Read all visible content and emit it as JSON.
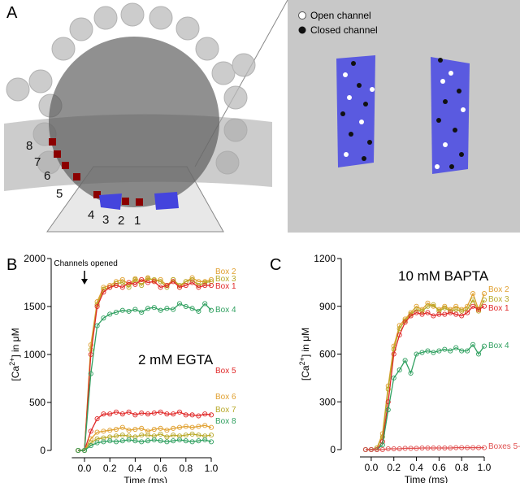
{
  "panel_a": {
    "label": "A",
    "legend": [
      "Open channel",
      "Closed channel"
    ],
    "box_labels": [
      "1",
      "2",
      "3",
      "4",
      "5",
      "6",
      "7",
      "8"
    ]
  },
  "chart_data": [
    {
      "type": "line",
      "panel_label": "B",
      "title": "2 mM EGTA",
      "annotation": "Channels opened",
      "x_label": "Time (ms)",
      "y_label": [
        "[Ca",
        "2+",
        "] in μM"
      ],
      "x": [
        -0.05,
        0,
        0.05,
        0.1,
        0.15,
        0.2,
        0.25,
        0.3,
        0.35,
        0.4,
        0.45,
        0.5,
        0.55,
        0.6,
        0.65,
        0.7,
        0.75,
        0.8,
        0.85,
        0.9,
        0.95,
        1.0
      ],
      "xlim": [
        -0.1,
        1.0
      ],
      "xticks": [
        {
          "value": 0,
          "label": "0.0"
        },
        0.2,
        0.4,
        0.6,
        0.8,
        {
          "value": 1,
          "label": "1.0"
        }
      ],
      "ylim": [
        0,
        2000
      ],
      "yticks": [
        0,
        500,
        1000,
        1500,
        2000
      ],
      "series": [
        {
          "name": "Box 2",
          "color": "#e0a030",
          "values": [
            0,
            0,
            1100,
            1550,
            1700,
            1720,
            1760,
            1780,
            1730,
            1790,
            1760,
            1800,
            1770,
            1780,
            1720,
            1780,
            1700,
            1760,
            1800,
            1760,
            1760,
            1780
          ]
        },
        {
          "name": "Box 3",
          "color": "#b8a828",
          "values": [
            0,
            0,
            1050,
            1520,
            1680,
            1700,
            1740,
            1750,
            1700,
            1780,
            1720,
            1790,
            1780,
            1760,
            1700,
            1780,
            1720,
            1760,
            1780,
            1720,
            1750,
            1760
          ]
        },
        {
          "name": "Box 1",
          "color": "#e02828",
          "values": [
            0,
            0,
            1000,
            1500,
            1650,
            1700,
            1720,
            1700,
            1750,
            1730,
            1780,
            1750,
            1760,
            1700,
            1720,
            1760,
            1700,
            1720,
            1750,
            1700,
            1720,
            1720
          ]
        },
        {
          "name": "Box 4",
          "color": "#30a060",
          "values": [
            0,
            0,
            800,
            1300,
            1380,
            1420,
            1440,
            1460,
            1450,
            1470,
            1440,
            1480,
            1490,
            1460,
            1480,
            1470,
            1530,
            1500,
            1480,
            1450,
            1530,
            1460
          ]
        },
        {
          "name": "Box 5",
          "color": "#e02828",
          "values": [
            0,
            0,
            200,
            330,
            380,
            380,
            400,
            380,
            400,
            370,
            390,
            380,
            390,
            400,
            380,
            380,
            400,
            370,
            370,
            360,
            380,
            370
          ]
        },
        {
          "name": "Box 6",
          "color": "#e0a030",
          "values": [
            0,
            0,
            120,
            190,
            200,
            210,
            220,
            240,
            210,
            220,
            230,
            200,
            220,
            230,
            210,
            230,
            240,
            250,
            240,
            250,
            260,
            240
          ]
        },
        {
          "name": "Box 7",
          "color": "#b8a828",
          "values": [
            0,
            0,
            80,
            120,
            130,
            140,
            150,
            160,
            150,
            140,
            160,
            160,
            150,
            170,
            140,
            160,
            150,
            160,
            170,
            160,
            150,
            160
          ]
        },
        {
          "name": "Box 8",
          "color": "#30a060",
          "values": [
            0,
            0,
            50,
            80,
            90,
            100,
            90,
            100,
            110,
            100,
            90,
            100,
            110,
            100,
            90,
            100,
            110,
            100,
            90,
            100,
            110,
            90
          ]
        }
      ]
    },
    {
      "type": "line",
      "panel_label": "C",
      "title": "10 mM BAPTA",
      "x_label": "Time (ms)",
      "y_label": [
        "[Ca",
        "2+",
        "] in μM"
      ],
      "x": [
        -0.05,
        0,
        0.05,
        0.1,
        0.15,
        0.2,
        0.25,
        0.3,
        0.35,
        0.4,
        0.45,
        0.5,
        0.55,
        0.6,
        0.65,
        0.7,
        0.75,
        0.8,
        0.85,
        0.9,
        0.95,
        1.0
      ],
      "xlim": [
        -0.1,
        1.0
      ],
      "xticks": [
        {
          "value": 0,
          "label": "0.0"
        },
        0.2,
        0.4,
        0.6,
        0.8,
        {
          "value": 1,
          "label": "1.0"
        }
      ],
      "ylim": [
        0,
        1200
      ],
      "yticks": [
        0,
        300,
        600,
        900,
        1200
      ],
      "series": [
        {
          "name": "Box 2",
          "color": "#e0a030",
          "values": [
            0,
            0,
            10,
            100,
            400,
            650,
            780,
            820,
            860,
            900,
            880,
            920,
            900,
            880,
            900,
            880,
            900,
            880,
            900,
            980,
            880,
            980
          ]
        },
        {
          "name": "Box 3",
          "color": "#b8a828",
          "values": [
            0,
            0,
            10,
            80,
            380,
            630,
            760,
            810,
            850,
            880,
            870,
            900,
            910,
            870,
            890,
            870,
            880,
            870,
            880,
            940,
            870,
            940
          ]
        },
        {
          "name": "Box 1",
          "color": "#e02828",
          "values": [
            0,
            0,
            0,
            50,
            300,
            600,
            720,
            800,
            840,
            860,
            850,
            860,
            840,
            850,
            850,
            860,
            850,
            840,
            860,
            900,
            880,
            900
          ]
        },
        {
          "name": "Box 4",
          "color": "#30a060",
          "values": [
            0,
            0,
            0,
            30,
            250,
            450,
            500,
            560,
            480,
            600,
            610,
            620,
            610,
            620,
            630,
            620,
            640,
            620,
            620,
            660,
            600,
            650
          ]
        },
        {
          "name": "Boxes 5-8",
          "color": "#e05050",
          "values": [
            0,
            0,
            0,
            0,
            5,
            5,
            5,
            8,
            8,
            8,
            10,
            10,
            10,
            10,
            10,
            10,
            12,
            12,
            12,
            12,
            12,
            12
          ]
        }
      ]
    }
  ]
}
